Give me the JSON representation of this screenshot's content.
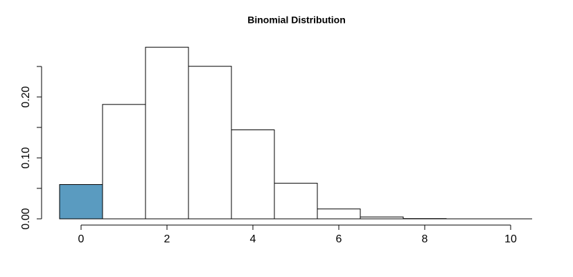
{
  "chart_data": {
    "type": "bar",
    "title": "Binomial Distribution",
    "x": [
      0,
      1,
      2,
      3,
      4,
      5,
      6,
      7,
      8,
      9,
      10
    ],
    "values": [
      0.0563,
      0.1877,
      0.2816,
      0.2503,
      0.146,
      0.0584,
      0.0162,
      0.0031,
      0.0004,
      0.0,
      0.0
    ],
    "colors": [
      "#5a9bc0",
      "#ffffff",
      "#ffffff",
      "#ffffff",
      "#ffffff",
      "#ffffff",
      "#ffffff",
      "#ffffff",
      "#ffffff",
      "#ffffff",
      "#ffffff"
    ],
    "xlim": [
      0,
      10
    ],
    "xticks": [
      0,
      2,
      4,
      6,
      8,
      10
    ],
    "ylim": [
      0,
      0.25
    ],
    "yticks": [
      {
        "value": 0,
        "label": "0.00"
      },
      {
        "value": 0.1,
        "label": "0.10"
      },
      {
        "value": 0.2,
        "label": "0.20"
      }
    ],
    "yminor_ticks": [
      0.05,
      0.15,
      0.25
    ],
    "grid": false
  }
}
